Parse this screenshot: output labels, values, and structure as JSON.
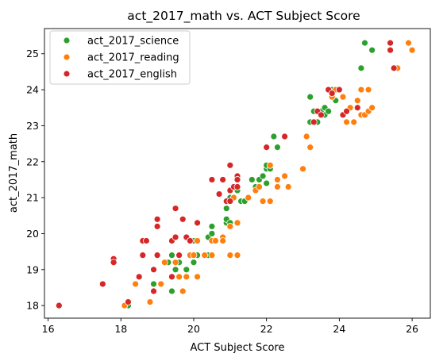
{
  "chart_data": {
    "type": "scatter",
    "title": "act_2017_math vs. ACT Subject Score",
    "xlabel": "ACT Subject Score",
    "ylabel": "act_2017_math",
    "xlim": [
      15.9,
      26.5
    ],
    "ylim": [
      17.65,
      25.7
    ],
    "xticks": [
      16,
      18,
      20,
      22,
      24,
      26
    ],
    "yticks": [
      18,
      19,
      20,
      21,
      22,
      23,
      24,
      25
    ],
    "grid": false,
    "legend_position": "top-left",
    "series": [
      {
        "name": "act_2017_science",
        "color": "#2ca02c",
        "points": [
          [
            18.2,
            18.0
          ],
          [
            18.9,
            18.6
          ],
          [
            19.3,
            19.2
          ],
          [
            19.4,
            19.4
          ],
          [
            19.4,
            18.4
          ],
          [
            19.5,
            19.0
          ],
          [
            19.6,
            18.8
          ],
          [
            19.6,
            19.2
          ],
          [
            19.8,
            19.0
          ],
          [
            19.9,
            19.8
          ],
          [
            20.0,
            19.2
          ],
          [
            20.0,
            19.8
          ],
          [
            20.1,
            19.4
          ],
          [
            20.4,
            19.4
          ],
          [
            20.4,
            19.9
          ],
          [
            20.5,
            20.0
          ],
          [
            20.5,
            20.2
          ],
          [
            20.9,
            20.3
          ],
          [
            20.9,
            20.4
          ],
          [
            20.9,
            20.7
          ],
          [
            21.0,
            20.3
          ],
          [
            21.0,
            21.0
          ],
          [
            21.1,
            21.3
          ],
          [
            21.2,
            21.2
          ],
          [
            21.3,
            20.9
          ],
          [
            21.4,
            20.9
          ],
          [
            21.6,
            21.5
          ],
          [
            21.7,
            21.3
          ],
          [
            21.8,
            21.5
          ],
          [
            21.9,
            21.6
          ],
          [
            22.0,
            21.4
          ],
          [
            22.0,
            21.8
          ],
          [
            22.0,
            21.9
          ],
          [
            22.1,
            21.8
          ],
          [
            22.2,
            22.7
          ],
          [
            22.3,
            22.4
          ],
          [
            23.2,
            23.1
          ],
          [
            23.2,
            23.8
          ],
          [
            23.3,
            23.4
          ],
          [
            23.4,
            23.1
          ],
          [
            23.5,
            23.4
          ],
          [
            23.6,
            23.5
          ],
          [
            23.6,
            23.3
          ],
          [
            23.7,
            23.4
          ],
          [
            23.8,
            24.0
          ],
          [
            23.8,
            23.8
          ],
          [
            23.9,
            23.7
          ],
          [
            23.9,
            24.0
          ],
          [
            24.6,
            24.6
          ],
          [
            24.7,
            25.3
          ],
          [
            24.9,
            25.1
          ]
        ]
      },
      {
        "name": "act_2017_reading",
        "color": "#ff7f0e",
        "points": [
          [
            18.1,
            18.0
          ],
          [
            18.4,
            18.6
          ],
          [
            18.8,
            18.1
          ],
          [
            19.1,
            18.6
          ],
          [
            19.2,
            19.2
          ],
          [
            19.5,
            19.2
          ],
          [
            19.6,
            18.8
          ],
          [
            19.7,
            18.4
          ],
          [
            19.8,
            18.8
          ],
          [
            19.9,
            19.4
          ],
          [
            20.0,
            19.4
          ],
          [
            20.1,
            19.8
          ],
          [
            20.1,
            18.8
          ],
          [
            20.3,
            19.4
          ],
          [
            20.5,
            19.4
          ],
          [
            20.5,
            19.8
          ],
          [
            20.6,
            19.8
          ],
          [
            20.8,
            19.9
          ],
          [
            20.8,
            19.8
          ],
          [
            21.0,
            20.2
          ],
          [
            21.0,
            19.4
          ],
          [
            21.1,
            21.0
          ],
          [
            21.2,
            20.3
          ],
          [
            21.2,
            19.4
          ],
          [
            21.5,
            21.0
          ],
          [
            21.7,
            21.2
          ],
          [
            21.8,
            21.3
          ],
          [
            21.9,
            20.9
          ],
          [
            22.1,
            20.9
          ],
          [
            22.1,
            21.9
          ],
          [
            22.3,
            21.5
          ],
          [
            22.3,
            21.3
          ],
          [
            22.5,
            21.6
          ],
          [
            22.6,
            21.3
          ],
          [
            23.0,
            21.8
          ],
          [
            23.1,
            22.7
          ],
          [
            23.2,
            22.4
          ],
          [
            23.8,
            23.8
          ],
          [
            23.9,
            24.0
          ],
          [
            24.1,
            23.8
          ],
          [
            24.2,
            23.1
          ],
          [
            24.3,
            23.5
          ],
          [
            24.4,
            23.1
          ],
          [
            24.5,
            23.7
          ],
          [
            24.6,
            24.0
          ],
          [
            24.6,
            23.3
          ],
          [
            24.7,
            23.3
          ],
          [
            24.8,
            23.4
          ],
          [
            24.8,
            24.0
          ],
          [
            24.9,
            23.5
          ],
          [
            25.6,
            24.6
          ],
          [
            25.9,
            25.3
          ],
          [
            26.0,
            25.1
          ]
        ]
      },
      {
        "name": "act_2017_english",
        "color": "#d62728",
        "points": [
          [
            16.3,
            18.0
          ],
          [
            17.5,
            18.6
          ],
          [
            17.8,
            19.3
          ],
          [
            17.8,
            19.2
          ],
          [
            18.2,
            18.1
          ],
          [
            18.5,
            18.8
          ],
          [
            18.6,
            19.4
          ],
          [
            18.6,
            19.8
          ],
          [
            18.7,
            19.8
          ],
          [
            18.9,
            19.0
          ],
          [
            18.9,
            18.4
          ],
          [
            19.0,
            20.4
          ],
          [
            19.0,
            20.2
          ],
          [
            19.0,
            19.4
          ],
          [
            19.4,
            18.8
          ],
          [
            19.4,
            19.8
          ],
          [
            19.5,
            19.9
          ],
          [
            19.5,
            20.7
          ],
          [
            19.6,
            19.4
          ],
          [
            19.7,
            20.4
          ],
          [
            19.8,
            19.9
          ],
          [
            19.9,
            19.8
          ],
          [
            20.1,
            20.3
          ],
          [
            20.5,
            21.5
          ],
          [
            20.7,
            21.1
          ],
          [
            20.8,
            21.5
          ],
          [
            20.9,
            20.9
          ],
          [
            21.0,
            20.9
          ],
          [
            21.0,
            21.9
          ],
          [
            21.0,
            21.2
          ],
          [
            21.1,
            21.3
          ],
          [
            21.2,
            21.3
          ],
          [
            21.2,
            21.6
          ],
          [
            21.2,
            21.5
          ],
          [
            22.0,
            22.4
          ],
          [
            22.5,
            22.7
          ],
          [
            23.3,
            23.1
          ],
          [
            23.4,
            23.4
          ],
          [
            23.5,
            23.3
          ],
          [
            23.7,
            24.0
          ],
          [
            23.8,
            23.9
          ],
          [
            24.0,
            24.0
          ],
          [
            24.1,
            23.3
          ],
          [
            24.2,
            23.4
          ],
          [
            24.5,
            23.5
          ],
          [
            25.4,
            25.3
          ],
          [
            25.4,
            25.1
          ],
          [
            25.5,
            24.6
          ]
        ]
      }
    ]
  }
}
